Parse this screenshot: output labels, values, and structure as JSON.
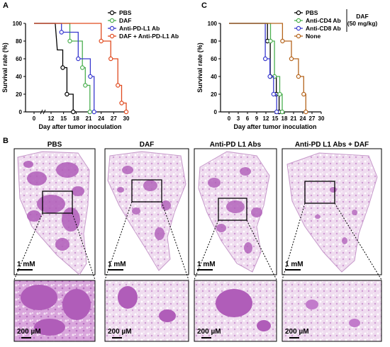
{
  "panels": {
    "A": "A",
    "B": "B",
    "C": "C"
  },
  "chart_data": [
    {
      "type": "line",
      "subtype": "kaplan-meier",
      "xlabel": "Day after tumor inoculation",
      "ylabel": "Survival rate (%)",
      "xticks": [
        "0",
        "12",
        "15",
        "18",
        "21",
        "24",
        "27",
        "30"
      ],
      "yticks": [
        "0",
        "20",
        "40",
        "60",
        "80",
        "100"
      ],
      "xlim": [
        0,
        30
      ],
      "ylim": [
        0,
        100
      ],
      "axis_break": true,
      "series": [
        {
          "name": "PBS",
          "color": "#000000",
          "marker": "circle",
          "points": [
            [
              0,
              100
            ],
            [
              13,
              100
            ],
            [
              13.5,
              70
            ],
            [
              14.8,
              70
            ],
            [
              14.8,
              50
            ],
            [
              15.8,
              50
            ],
            [
              15.8,
              20
            ],
            [
              17.3,
              20
            ],
            [
              17.3,
              0
            ],
            [
              18,
              0
            ]
          ]
        },
        {
          "name": "DAF",
          "color": "#4caf50",
          "marker": "circle",
          "points": [
            [
              0,
              100
            ],
            [
              16.5,
              100
            ],
            [
              16.5,
              80
            ],
            [
              19.5,
              80
            ],
            [
              19.5,
              50
            ],
            [
              20.2,
              50
            ],
            [
              20.2,
              30
            ],
            [
              21.3,
              30
            ],
            [
              21.3,
              0
            ],
            [
              22,
              0
            ]
          ]
        },
        {
          "name": "Anti-PD-L1 Ab",
          "color": "#3a3acf",
          "marker": "circle",
          "points": [
            [
              0,
              100
            ],
            [
              14.5,
              100
            ],
            [
              14.5,
              90
            ],
            [
              18.5,
              90
            ],
            [
              18.5,
              60
            ],
            [
              21.4,
              60
            ],
            [
              21.4,
              40
            ],
            [
              22.3,
              40
            ],
            [
              22.3,
              0
            ],
            [
              23,
              0
            ]
          ]
        },
        {
          "name": "DAF + Anti-PD-L1 Ab",
          "color": "#e04a1f",
          "marker": "circle",
          "points": [
            [
              0,
              100
            ],
            [
              24,
              100
            ],
            [
              24,
              80
            ],
            [
              26.3,
              80
            ],
            [
              26.3,
              60
            ],
            [
              28,
              60
            ],
            [
              28,
              30
            ],
            [
              28.9,
              30
            ],
            [
              28.9,
              10
            ],
            [
              30,
              10
            ],
            [
              30,
              0
            ]
          ]
        }
      ]
    },
    {
      "type": "line",
      "subtype": "kaplan-meier",
      "xlabel": "Day after tumor inoculation",
      "ylabel": "Survival rate (%)",
      "xticks": [
        "0",
        "3",
        "6",
        "9",
        "12",
        "15",
        "18",
        "21",
        "24",
        "27",
        "30"
      ],
      "yticks": [
        "0",
        "20",
        "40",
        "60",
        "80",
        "100"
      ],
      "xlim": [
        0,
        30
      ],
      "ylim": [
        0,
        100
      ],
      "legend_bracket_label": [
        "DAF",
        "(50 mg/kg)"
      ],
      "series": [
        {
          "name": "PBS",
          "color": "#000000",
          "marker": "circle",
          "points": [
            [
              0,
              100
            ],
            [
              12.5,
              100
            ],
            [
              12.5,
              80
            ],
            [
              13.4,
              80
            ],
            [
              13.4,
              40
            ],
            [
              15.4,
              40
            ],
            [
              15.4,
              20
            ],
            [
              16.3,
              20
            ],
            [
              16.3,
              0
            ],
            [
              17,
              0
            ]
          ]
        },
        {
          "name": "Anti-CD4 Ab",
          "color": "#4caf50",
          "marker": "circle",
          "points": [
            [
              0,
              100
            ],
            [
              13.5,
              100
            ],
            [
              13.5,
              80
            ],
            [
              14.8,
              80
            ],
            [
              14.8,
              40
            ],
            [
              16.5,
              40
            ],
            [
              16.5,
              20
            ],
            [
              17.3,
              20
            ],
            [
              17.3,
              0
            ],
            [
              18,
              0
            ]
          ]
        },
        {
          "name": "Anti-CD8 Ab",
          "color": "#3a3acf",
          "marker": "circle",
          "points": [
            [
              0,
              100
            ],
            [
              11.8,
              100
            ],
            [
              11.8,
              60
            ],
            [
              13.3,
              60
            ],
            [
              13.3,
              40
            ],
            [
              14.5,
              40
            ],
            [
              14.5,
              20
            ],
            [
              15.5,
              20
            ],
            [
              15.5,
              0
            ],
            [
              16,
              0
            ]
          ]
        },
        {
          "name": "None",
          "color": "#b5651d",
          "marker": "circle",
          "points": [
            [
              0,
              100
            ],
            [
              17.4,
              100
            ],
            [
              17.4,
              80
            ],
            [
              20.3,
              80
            ],
            [
              20.3,
              60
            ],
            [
              22.6,
              60
            ],
            [
              22.6,
              40
            ],
            [
              24.3,
              40
            ],
            [
              24.3,
              20
            ],
            [
              25,
              20
            ],
            [
              25,
              0
            ]
          ]
        }
      ]
    }
  ],
  "histology": {
    "columns": [
      "PBS",
      "DAF",
      "Anti-PD L1 Abs",
      "Anti-PD L1 Abs + DAF"
    ],
    "overview_scale": "1 mM",
    "zoom_scale": "200 µM"
  }
}
